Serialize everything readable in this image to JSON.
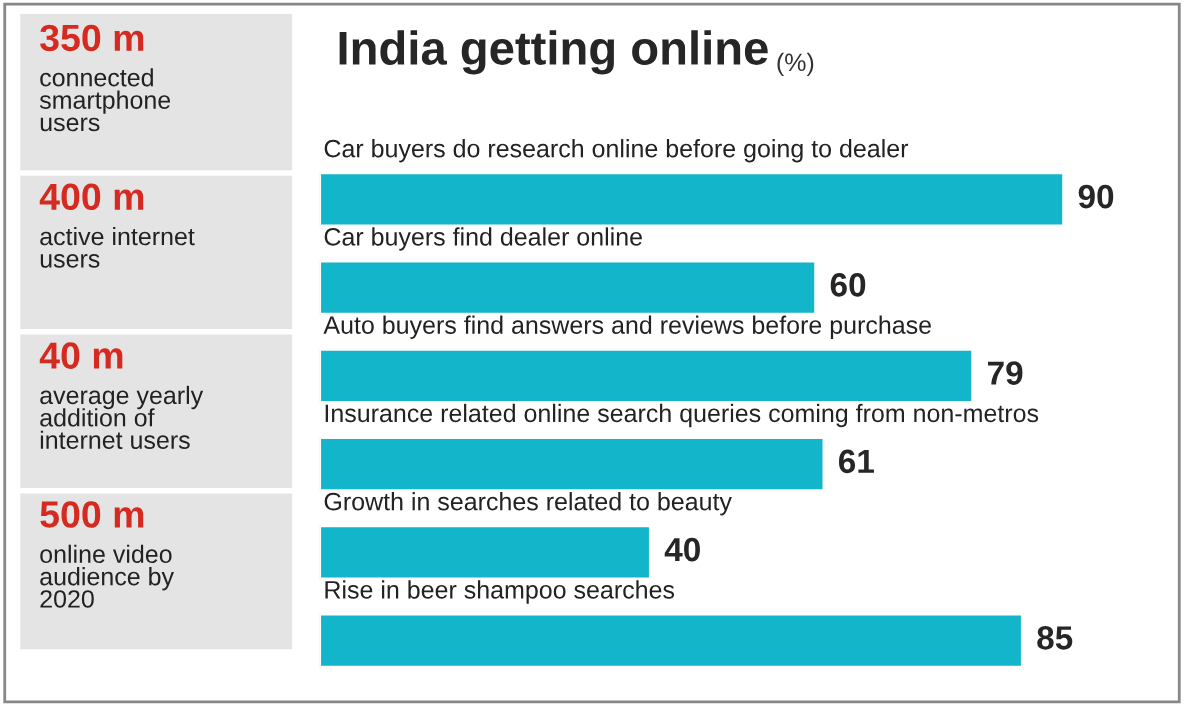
{
  "chart_data": [
    {
      "type": "other",
      "annotations": [
        "350 m",
        "connected smartphone users",
        "400 m",
        "active internet users",
        "40 m",
        "average yearly addition of internet users",
        "500 m",
        "online video audience by 2020"
      ]
    },
    {
      "type": "bar",
      "orientation": "horizontal",
      "title": "India getting online",
      "subtitle": "(%)",
      "categories": [
        "Car buyers do research online before going to dealer",
        "Car buyers find dealer online",
        "Auto buyers find answers and reviews before purchase",
        "Insurance related online search queries coming from non-metros",
        "Growth in searches related to beauty",
        "Rise in beer shampoo searches"
      ],
      "values": [
        90,
        60,
        79,
        61,
        40,
        85
      ],
      "color": "#12b5c9",
      "data_labels": true
    }
  ]
}
